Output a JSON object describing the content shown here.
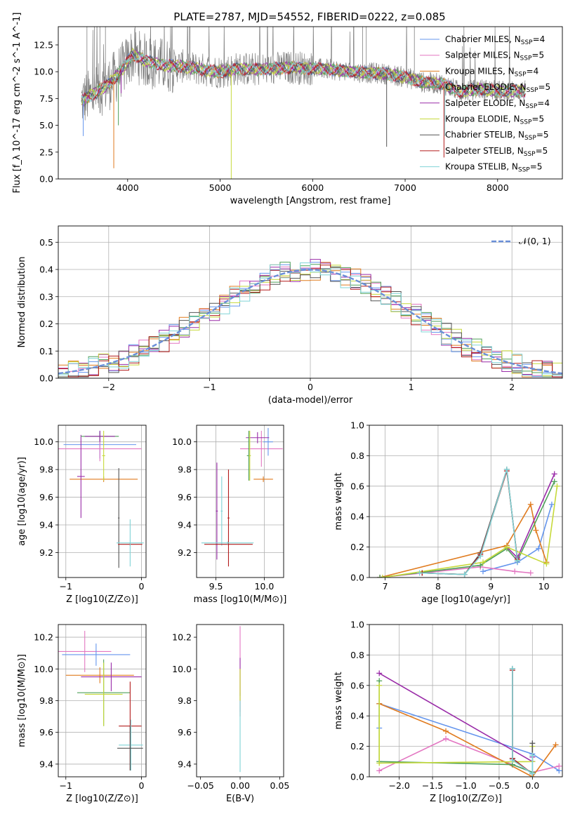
{
  "figure": {
    "title": "PLATE=2787, MJD=54552, FIBERID=0222, z=0.085"
  },
  "legend_series": [
    {
      "name": "Chabrier MILES, N_SSP=4",
      "label": "Chabrier MILES, N",
      "sub": "SSP",
      "tail": "=4",
      "color": "#6495ed"
    },
    {
      "name": "Salpeter MILES, N_SSP=5",
      "label": "Salpeter MILES, N",
      "sub": "SSP",
      "tail": "=5",
      "color": "#e377c2"
    },
    {
      "name": "Kroupa MILES, N_SSP=4",
      "label": "Kroupa MILES, N",
      "sub": "SSP",
      "tail": "=4",
      "color": "#e07b1f"
    },
    {
      "name": "Chabrier ELODIE, N_SSP=5",
      "label": "Chabrier ELODIE, N",
      "sub": "SSP",
      "tail": "=5",
      "color": "#4fa05a"
    },
    {
      "name": "Salpeter ELODIE, N_SSP=4",
      "label": "Salpeter ELODIE, N",
      "sub": "SSP",
      "tail": "=4",
      "color": "#9a2ca8"
    },
    {
      "name": "Kroupa ELODIE, N_SSP=5",
      "label": "Kroupa ELODIE, N",
      "sub": "SSP",
      "tail": "=5",
      "color": "#c6d93a"
    },
    {
      "name": "Chabrier STELIB, N_SSP=5",
      "label": "Chabrier STELIB, N",
      "sub": "SSP",
      "tail": "=5",
      "color": "#555555"
    },
    {
      "name": "Salpeter STELIB, N_SSP=5",
      "label": "Salpeter STELIB, N",
      "sub": "SSP",
      "tail": "=5",
      "color": "#b31b1b"
    },
    {
      "name": "Kroupa STELIB, N_SSP=5",
      "label": "Kroupa STELIB, N",
      "sub": "SSP",
      "tail": "=5",
      "color": "#7fd3d6"
    }
  ],
  "chart_data": [
    {
      "id": "spectrum",
      "type": "line",
      "xlabel": "wavelength [Angstrom, rest frame]",
      "ylabel": "Flux [f_λ 10^-17 erg cm^-2 s^-1 A^-1]",
      "xlim": [
        3250,
        8700
      ],
      "ylim": [
        0,
        14.2
      ],
      "xticks": [
        4000,
        5000,
        6000,
        7000,
        8000
      ],
      "yticks": [
        0.0,
        2.5,
        5.0,
        7.5,
        10.0,
        12.5
      ],
      "xtick_labels": [
        "4000",
        "5000",
        "6000",
        "7000",
        "8000"
      ],
      "ytick_labels": [
        "0.0",
        "2.5",
        "5.0",
        "7.5",
        "10.0",
        "12.5"
      ],
      "grid": false,
      "legend": "top-right",
      "data_color": "#808080",
      "continuum": [
        [
          3500,
          7.3
        ],
        [
          3650,
          8.0
        ],
        [
          3800,
          8.9
        ],
        [
          3950,
          10.3
        ],
        [
          4050,
          11.6
        ],
        [
          4200,
          11.0
        ],
        [
          4400,
          10.6
        ],
        [
          4600,
          10.5
        ],
        [
          4800,
          10.2
        ],
        [
          5000,
          10.0
        ],
        [
          5200,
          10.3
        ],
        [
          5400,
          10.2
        ],
        [
          5600,
          10.3
        ],
        [
          5800,
          10.4
        ],
        [
          6000,
          10.3
        ],
        [
          6200,
          10.2
        ],
        [
          6400,
          10.0
        ],
        [
          6600,
          9.9
        ],
        [
          6800,
          9.8
        ],
        [
          7000,
          9.5
        ],
        [
          7200,
          9.0
        ],
        [
          7400,
          8.9
        ],
        [
          7600,
          8.1
        ],
        [
          7800,
          8.4
        ],
        [
          8000,
          8.2
        ],
        [
          8200,
          8.2
        ],
        [
          8300,
          8.2
        ]
      ],
      "dropouts": [
        [
          3520,
          4
        ],
        [
          3550,
          7
        ],
        [
          3850,
          1
        ],
        [
          3900,
          5
        ],
        [
          3930,
          8
        ],
        [
          5120,
          0
        ],
        [
          6800,
          3
        ],
        [
          7420,
          2
        ],
        [
          7430,
          4
        ]
      ]
    },
    {
      "id": "residuals",
      "type": "histogram",
      "xlabel": "(data-model)/error",
      "ylabel": "Normed distribution",
      "xlim": [
        -2.5,
        2.5
      ],
      "ylim": [
        0,
        0.56
      ],
      "xticks": [
        -2,
        -1,
        0,
        1,
        2
      ],
      "yticks": [
        0.0,
        0.1,
        0.2,
        0.3,
        0.4,
        0.5
      ],
      "xtick_labels": [
        "−2",
        "−1",
        "0",
        "1",
        "2"
      ],
      "ytick_labels": [
        "0.0",
        "0.1",
        "0.2",
        "0.3",
        "0.4",
        "0.5"
      ],
      "grid": true,
      "legend": "top-right",
      "reference_curve": {
        "name": "N(0,1)",
        "label": "𝒩(0, 1)",
        "color": "#6a8fd8"
      },
      "bin_width": 0.1
    },
    {
      "id": "age_vs_Z",
      "type": "scatter",
      "xlabel": "Z [log10(Z/Z⊙)]",
      "ylabel": "age [log10(age/yr)]",
      "xlim": [
        -1.1,
        0.06
      ],
      "ylim": [
        9.02,
        10.12
      ],
      "xticks": [
        -1,
        0
      ],
      "yticks": [
        9.2,
        9.4,
        9.6,
        9.8,
        10.0
      ],
      "xtick_labels": [
        "−1",
        "0"
      ],
      "ytick_labels": [
        "9.2",
        "9.4",
        "9.6",
        "9.8",
        "10.0"
      ],
      "grid": true,
      "points": [
        {
          "x": -0.55,
          "y": 9.98,
          "xerr": 0.48,
          "yerr": 0.1,
          "color": "#6495ed"
        },
        {
          "x": -0.55,
          "y": 9.95,
          "xerr": 0.55,
          "yerr": 0.09,
          "color": "#e377c2"
        },
        {
          "x": -0.5,
          "y": 9.73,
          "xerr": 0.45,
          "yerr": 0.02,
          "color": "#e07b1f"
        },
        {
          "x": -0.8,
          "y": 9.75,
          "xerr": 0.05,
          "yerr": 0.3,
          "color": "#9a2ca8"
        },
        {
          "x": -0.55,
          "y": 10.04,
          "xerr": 0.25,
          "yerr": 0.03,
          "color": "#4fa05a"
        },
        {
          "x": -0.55,
          "y": 10.04,
          "xerr": 0.2,
          "yerr": 0.04,
          "color": "#9a2ca8"
        },
        {
          "x": -0.5,
          "y": 9.9,
          "xerr": 0.02,
          "yerr": 0.18,
          "color": "#c6d93a"
        },
        {
          "x": -0.3,
          "y": 9.45,
          "xerr": 0.01,
          "yerr": 0.36,
          "color": "#555555"
        },
        {
          "x": -0.15,
          "y": 9.26,
          "xerr": 0.16,
          "yerr": 0.01,
          "color": "#b31b1b"
        },
        {
          "x": -0.15,
          "y": 9.27,
          "xerr": 0.18,
          "yerr": 0.17,
          "color": "#7fd3d6"
        }
      ]
    },
    {
      "id": "age_vs_mass",
      "type": "scatter",
      "xlabel": "mass [log10(M/M⊙)]",
      "ylabel": "",
      "xlim": [
        9.3,
        10.2
      ],
      "ylim": [
        9.02,
        10.12
      ],
      "xticks": [
        9.5,
        10.0
      ],
      "yticks": [
        9.2,
        9.4,
        9.6,
        9.8,
        10.0
      ],
      "xtick_labels": [
        "9.5",
        "10.0"
      ],
      "ytick_labels": [
        "9.2",
        "9.4",
        "9.6",
        "9.8",
        "10.0"
      ],
      "grid": true,
      "points": [
        {
          "x": 9.97,
          "y": 9.95,
          "xerr": 0.22,
          "yerr": 0.13,
          "color": "#e377c2"
        },
        {
          "x": 10.04,
          "y": 10.0,
          "xerr": 0.05,
          "yerr": 0.1,
          "color": "#6495ed"
        },
        {
          "x": 9.99,
          "y": 9.73,
          "xerr": 0.1,
          "yerr": 0.02,
          "color": "#e07b1f"
        },
        {
          "x": 9.93,
          "y": 10.03,
          "xerr": 0.12,
          "yerr": 0.04,
          "color": "#9a2ca8"
        },
        {
          "x": 9.84,
          "y": 9.9,
          "xerr": 0.02,
          "yerr": 0.18,
          "color": "#4fa05a"
        },
        {
          "x": 9.85,
          "y": 9.9,
          "xerr": 0.01,
          "yerr": 0.18,
          "color": "#c6d93a"
        },
        {
          "x": 9.51,
          "y": 9.5,
          "xerr": 0.01,
          "yerr": 0.35,
          "color": "#9a2ca8"
        },
        {
          "x": 9.56,
          "y": 9.5,
          "xerr": 0.01,
          "yerr": 0.25,
          "color": "#7fd3d6"
        },
        {
          "x": 9.63,
          "y": 9.26,
          "xerr": 0.25,
          "yerr": 0.01,
          "color": "#b31b1b"
        },
        {
          "x": 9.63,
          "y": 9.45,
          "xerr": 0.01,
          "yerr": 0.35,
          "color": "#b31b1b"
        },
        {
          "x": 9.62,
          "y": 9.27,
          "xerr": 0.27,
          "yerr": 0.01,
          "color": "#7fd3d6"
        }
      ]
    },
    {
      "id": "weight_vs_age",
      "type": "line",
      "xlabel": "age [log10(age/yr)]",
      "ylabel": "mass weight",
      "xlim": [
        6.7,
        10.35
      ],
      "ylim": [
        0,
        1.0
      ],
      "xticks": [
        7,
        8,
        9,
        10
      ],
      "yticks": [
        0.0,
        0.2,
        0.4,
        0.6,
        0.8,
        1.0
      ],
      "xtick_labels": [
        "7",
        "8",
        "9",
        "10"
      ],
      "ytick_labels": [
        "0.0",
        "0.2",
        "0.4",
        "0.6",
        "0.8",
        "1.0"
      ],
      "grid": true,
      "series": [
        {
          "name": "Chabrier MILES",
          "color": "#6495ed",
          "x": [
            8.85,
            9.5,
            9.9,
            10.15
          ],
          "y": [
            0.04,
            0.1,
            0.19,
            0.48
          ]
        },
        {
          "name": "Salpeter MILES",
          "color": "#e377c2",
          "x": [
            6.9,
            8.8,
            9.45,
            9.75
          ],
          "y": [
            0.0,
            0.07,
            0.04,
            0.03
          ]
        },
        {
          "name": "Kroupa MILES",
          "color": "#e07b1f",
          "x": [
            6.9,
            9.3,
            9.75,
            9.85,
            10.05
          ],
          "y": [
            0.0,
            0.21,
            0.48,
            0.31,
            0.1
          ]
        },
        {
          "name": "Chabrier ELODIE",
          "color": "#4fa05a",
          "x": [
            6.9,
            8.8,
            9.3,
            9.5,
            10.2
          ],
          "y": [
            0.0,
            0.08,
            0.19,
            0.11,
            0.63
          ]
        },
        {
          "name": "Salpeter ELODIE",
          "color": "#9a2ca8",
          "x": [
            9.3,
            9.5,
            10.2
          ],
          "y": [
            0.2,
            0.13,
            0.68
          ]
        },
        {
          "name": "Kroupa ELODIE",
          "color": "#c6d93a",
          "x": [
            6.95,
            8.85,
            9.3,
            10.05,
            10.25
          ],
          "y": [
            0.0,
            0.1,
            0.2,
            0.09,
            0.6
          ]
        },
        {
          "name": "Chabrier STELIB",
          "color": "#555555",
          "x": [
            7.7,
            8.5,
            8.8,
            9.3,
            9.5
          ],
          "y": [
            0.03,
            0.02,
            0.16,
            0.71,
            0.11
          ]
        },
        {
          "name": "Salpeter STELIB",
          "color": "#b31b1b",
          "x": [
            7.7,
            8.5,
            8.8,
            9.3,
            9.5
          ],
          "y": [
            0.03,
            0.02,
            0.15,
            0.7,
            0.12
          ]
        },
        {
          "name": "Kroupa STELIB",
          "color": "#7fd3d6",
          "x": [
            7.65,
            8.5,
            8.8,
            9.3,
            9.5
          ],
          "y": [
            0.03,
            0.02,
            0.14,
            0.71,
            0.11
          ]
        }
      ]
    },
    {
      "id": "mass_vs_Z",
      "type": "scatter",
      "xlabel": "Z [log10(Z/Z⊙)]",
      "ylabel": "mass [log10(M/M⊙)]",
      "xlim": [
        -1.1,
        0.06
      ],
      "ylim": [
        9.32,
        10.28
      ],
      "xticks": [
        -1,
        0
      ],
      "yticks": [
        9.4,
        9.6,
        9.8,
        10.0,
        10.2
      ],
      "xtick_labels": [
        "−1",
        "0"
      ],
      "ytick_labels": [
        "9.4",
        "9.6",
        "9.8",
        "10.0",
        "10.2"
      ],
      "grid": true,
      "points": [
        {
          "x": -0.75,
          "y": 10.11,
          "xerr": 0.35,
          "yerr": 0.13,
          "color": "#e377c2"
        },
        {
          "x": -0.6,
          "y": 10.09,
          "xerr": 0.45,
          "yerr": 0.07,
          "color": "#6495ed"
        },
        {
          "x": -0.55,
          "y": 9.96,
          "xerr": 0.45,
          "yerr": 0.05,
          "color": "#e07b1f"
        },
        {
          "x": -0.4,
          "y": 9.95,
          "xerr": 0.4,
          "yerr": 0.09,
          "color": "#9a2ca8"
        },
        {
          "x": -0.5,
          "y": 9.85,
          "xerr": 0.35,
          "yerr": 0.21,
          "color": "#4fa05a"
        },
        {
          "x": -0.5,
          "y": 9.84,
          "xerr": 0.25,
          "yerr": 0.2,
          "color": "#c6d93a"
        },
        {
          "x": -0.15,
          "y": 9.64,
          "xerr": 0.15,
          "yerr": 0.28,
          "color": "#b31b1b"
        },
        {
          "x": -0.14,
          "y": 9.52,
          "xerr": 0.16,
          "yerr": 0.16,
          "color": "#7fd3d6"
        },
        {
          "x": -0.15,
          "y": 9.5,
          "xerr": 0.17,
          "yerr": 0.14,
          "color": "#555555"
        }
      ]
    },
    {
      "id": "mass_vs_ebv",
      "type": "scatter",
      "xlabel": "E(B-V)",
      "ylabel": "",
      "xlim": [
        -0.055,
        0.055
      ],
      "ylim": [
        9.32,
        10.28
      ],
      "xticks": [
        -0.05,
        0.0,
        0.05
      ],
      "yticks": [
        9.4,
        9.6,
        9.8,
        10.0,
        10.2
      ],
      "xtick_labels": [
        "−0.05",
        "0.00",
        "0.05"
      ],
      "ytick_labels": [
        "9.4",
        "9.6",
        "9.8",
        "10.0",
        "10.2"
      ],
      "grid": false,
      "points": [
        {
          "x": 0.0,
          "y": 10.0,
          "xerr": 0,
          "yerr": 0.27,
          "color": "#e377c2"
        },
        {
          "x": 0.0,
          "y": 9.95,
          "xerr": 0,
          "yerr": 0.12,
          "color": "#9a2ca8"
        },
        {
          "x": 0.0,
          "y": 9.85,
          "xerr": 0,
          "yerr": 0.15,
          "color": "#b31b1b"
        },
        {
          "x": 0.0,
          "y": 9.6,
          "xerr": 0,
          "yerr": 0.25,
          "color": "#7fd3d6"
        },
        {
          "x": 0.0,
          "y": 9.9,
          "xerr": 0,
          "yerr": 0.1,
          "color": "#c6d93a"
        }
      ]
    },
    {
      "id": "weight_vs_Z",
      "type": "line",
      "xlabel": "Z [log10(Z/Z⊙)]",
      "ylabel": "mass weight",
      "xlim": [
        -2.45,
        0.45
      ],
      "ylim": [
        0,
        1.0
      ],
      "xticks": [
        -2.0,
        -1.5,
        -1.0,
        -0.5,
        0.0
      ],
      "yticks": [
        0.0,
        0.2,
        0.4,
        0.6,
        0.8,
        1.0
      ],
      "xtick_labels": [
        "−2.0",
        "−1.5",
        "−1.0",
        "−0.5",
        "0.0"
      ],
      "ytick_labels": [
        "0.0",
        "0.2",
        "0.4",
        "0.6",
        "0.8",
        "1.0"
      ],
      "grid": true,
      "series": [
        {
          "name": "Chabrier MILES",
          "color": "#6495ed",
          "x": [
            -2.3,
            -2.3,
            -0.0,
            0.4
          ],
          "y": [
            0.32,
            0.48,
            0.15,
            0.04
          ]
        },
        {
          "name": "Salpeter MILES",
          "color": "#e377c2",
          "x": [
            -2.3,
            -1.3,
            -0.3,
            0.0,
            0.4
          ],
          "y": [
            0.04,
            0.25,
            0.08,
            0.03,
            0.07
          ]
        },
        {
          "name": "Kroupa MILES",
          "color": "#e07b1f",
          "x": [
            -2.3,
            -1.3,
            0.0,
            0.35
          ],
          "y": [
            0.48,
            0.3,
            0.0,
            0.21
          ]
        },
        {
          "name": "Chabrier ELODIE",
          "color": "#4fa05a",
          "x": [
            -2.3,
            -2.3,
            -0.3,
            0.0
          ],
          "y": [
            0.63,
            0.1,
            0.08,
            0.03
          ]
        },
        {
          "name": "Salpeter ELODIE",
          "color": "#9a2ca8",
          "x": [
            -2.3,
            0.0,
            0.0
          ],
          "y": [
            0.68,
            0.1,
            0.13
          ]
        },
        {
          "name": "Kroupa ELODIE",
          "color": "#c6d93a",
          "x": [
            -2.3,
            -2.3,
            0.0,
            0.0
          ],
          "y": [
            0.6,
            0.09,
            0.1,
            0.2
          ]
        },
        {
          "name": "Chabrier STELIB",
          "color": "#555555",
          "x": [
            -0.3,
            -0.3,
            0.0,
            0.0
          ],
          "y": [
            0.71,
            0.12,
            0.02,
            0.22
          ]
        },
        {
          "name": "Salpeter STELIB",
          "color": "#b31b1b",
          "x": [
            -0.3,
            -0.3,
            0.0
          ],
          "y": [
            0.7,
            0.12,
            0.02
          ]
        },
        {
          "name": "Kroupa STELIB",
          "color": "#7fd3d6",
          "x": [
            -0.3,
            -0.3,
            0.0,
            0.0
          ],
          "y": [
            0.71,
            0.11,
            0.02,
            0.14
          ]
        }
      ]
    }
  ]
}
